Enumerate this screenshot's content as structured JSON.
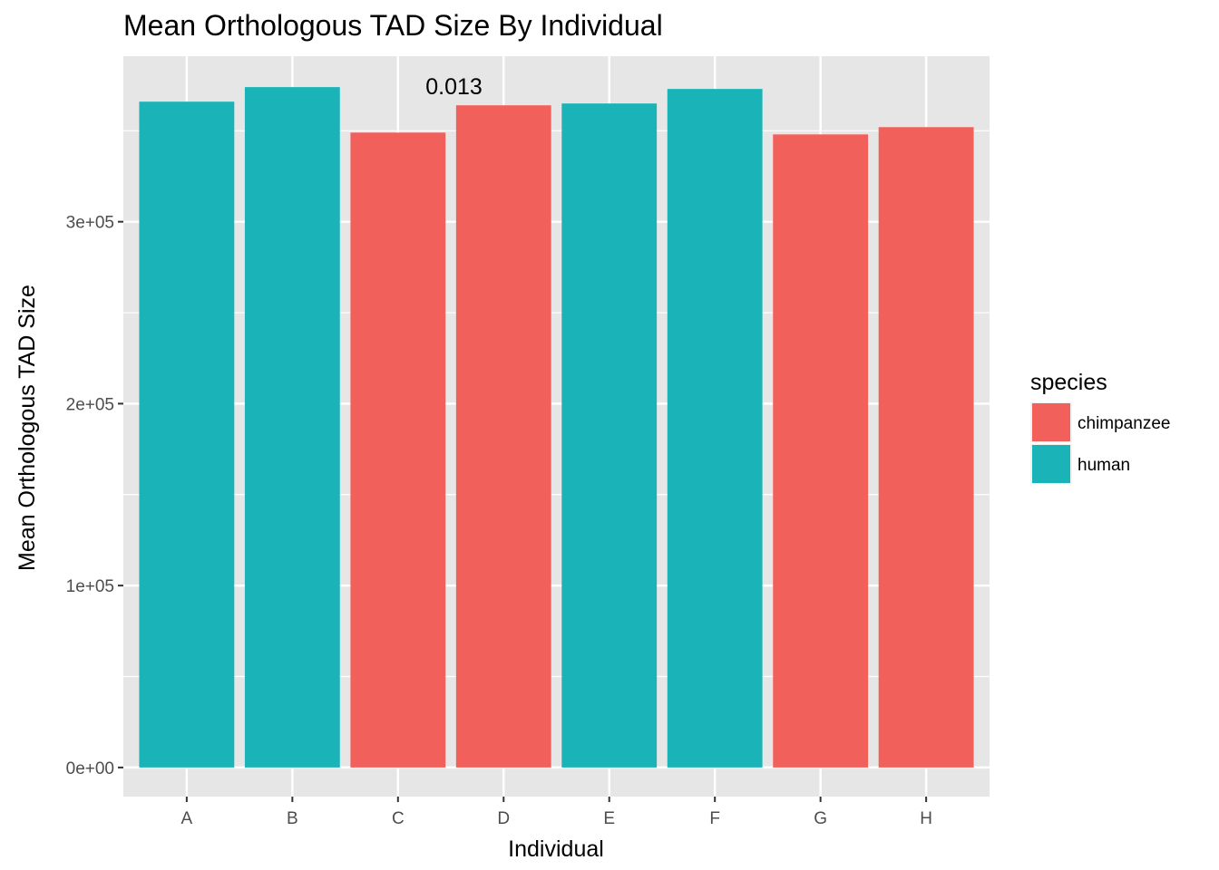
{
  "chart_data": {
    "type": "bar",
    "title": "Mean Orthologous TAD Size By Individual",
    "xlabel": "Individual",
    "ylabel": "Mean Orthologous TAD Size",
    "categories": [
      "A",
      "B",
      "C",
      "D",
      "E",
      "F",
      "G",
      "H"
    ],
    "values": [
      366000,
      374000,
      349000,
      364000,
      365000,
      373000,
      348000,
      352000
    ],
    "species": [
      "human",
      "human",
      "chimpanzee",
      "chimpanzee",
      "human",
      "human",
      "chimpanzee",
      "chimpanzee"
    ],
    "ylim": [
      -16000,
      391000
    ],
    "yticks": [
      0,
      100000,
      200000,
      300000
    ],
    "ytick_labels": [
      "0e+00",
      "1e+05",
      "2e+05",
      "3e+05"
    ],
    "grid": true,
    "annotation": {
      "text": "0.013",
      "between": [
        "C",
        "D"
      ]
    },
    "legend": {
      "title": "species",
      "position": "right",
      "entries": [
        {
          "name": "chimpanzee",
          "color": "#F2605C"
        },
        {
          "name": "human",
          "color": "#1AB3B7"
        }
      ]
    },
    "panel_background": "#E6E6E6",
    "gridline_color": "#FFFFFF"
  }
}
